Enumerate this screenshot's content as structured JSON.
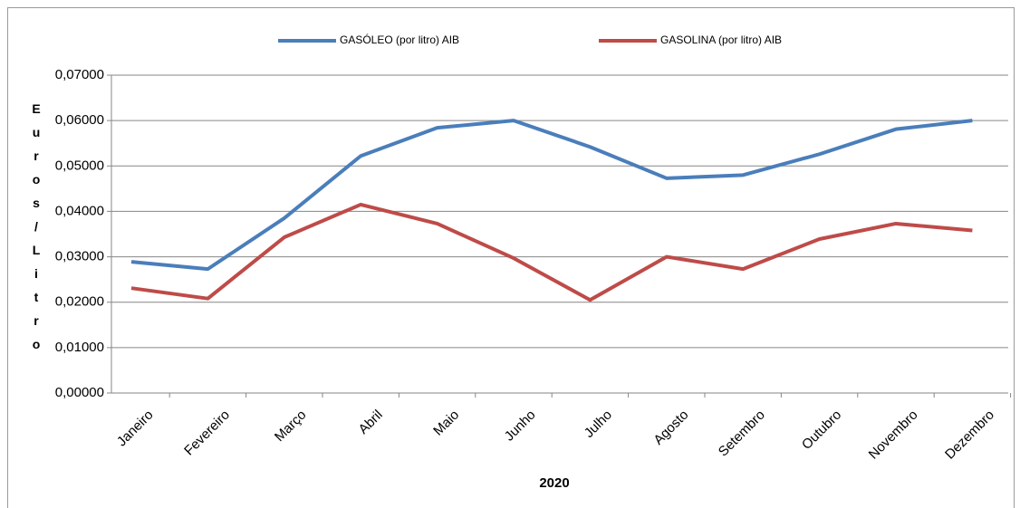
{
  "chart_data": {
    "type": "line",
    "x_label": "2020",
    "y_label": "Euros/Litro",
    "categories": [
      "Janeiro",
      "Fevereiro",
      "Março",
      "Abril",
      "Maio",
      "Junho",
      "Julho",
      "Agosto",
      "Setembro",
      "Outubro",
      "Novembro",
      "Dezembro"
    ],
    "series": [
      {
        "name": "GASÓLEO (por litro) AIB",
        "color": "#4a7ebb",
        "values": [
          0.0289,
          0.0273,
          0.0385,
          0.0522,
          0.0584,
          0.06,
          0.0542,
          0.0473,
          0.048,
          0.0526,
          0.0581,
          0.06
        ]
      },
      {
        "name": "GASOLINA  (por litro) AIB",
        "color": "#be4b48",
        "values": [
          0.0231,
          0.0208,
          0.0343,
          0.0415,
          0.0373,
          0.0297,
          0.0205,
          0.03,
          0.0273,
          0.0339,
          0.0373,
          0.0358
        ]
      }
    ],
    "ylim": [
      0,
      0.07
    ],
    "yticks": [
      {
        "value": 0,
        "label": "0,00000"
      },
      {
        "value": 0.01,
        "label": "0,01000"
      },
      {
        "value": 0.02,
        "label": "0,02000"
      },
      {
        "value": 0.03,
        "label": "0,03000"
      },
      {
        "value": 0.04,
        "label": "0,04000"
      },
      {
        "value": 0.05,
        "label": "0,05000"
      },
      {
        "value": 0.06,
        "label": "0,06000"
      },
      {
        "value": 0.07,
        "label": "0,07000"
      }
    ],
    "grid": true
  }
}
